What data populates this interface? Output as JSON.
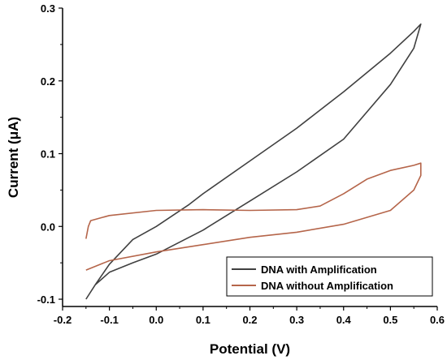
{
  "chart_data": {
    "type": "line",
    "title": "",
    "xlabel": "Potential (V)",
    "ylabel": "Current (μA)",
    "xlim": [
      -0.2,
      0.6
    ],
    "ylim": [
      -0.11,
      0.3
    ],
    "xticks": [
      "-0.2",
      "-0.1",
      "0.0",
      "0.1",
      "0.2",
      "0.3",
      "0.4",
      "0.5",
      "0.6"
    ],
    "yticks": [
      "-0.1",
      "0.0",
      "0.1",
      "0.2",
      "0.3"
    ],
    "grid": false,
    "legend_position": "bottom-right",
    "series": [
      {
        "name": "DNA with Amplification",
        "color": "#404040",
        "x": [
          -0.15,
          -0.13,
          -0.1,
          -0.05,
          0.0,
          0.07,
          0.1,
          0.2,
          0.3,
          0.4,
          0.5,
          0.55,
          0.565,
          0.55,
          0.5,
          0.4,
          0.3,
          0.2,
          0.1,
          0.0,
          -0.05,
          -0.1,
          -0.13,
          -0.15
        ],
        "y": [
          -0.1,
          -0.08,
          -0.052,
          -0.018,
          0.0,
          0.03,
          0.045,
          0.09,
          0.135,
          0.185,
          0.238,
          0.268,
          0.278,
          0.245,
          0.195,
          0.12,
          0.075,
          0.035,
          -0.005,
          -0.038,
          -0.05,
          -0.063,
          -0.08,
          -0.1
        ]
      },
      {
        "name": "DNA without Amplification",
        "color": "#b5654a",
        "x": [
          -0.15,
          -0.145,
          -0.14,
          -0.1,
          0.0,
          0.1,
          0.2,
          0.3,
          0.35,
          0.4,
          0.45,
          0.5,
          0.55,
          0.565,
          0.565,
          0.55,
          0.5,
          0.4,
          0.3,
          0.2,
          0.1,
          0.0,
          -0.1,
          -0.15
        ],
        "y": [
          -0.017,
          0.0,
          0.008,
          0.015,
          0.022,
          0.023,
          0.022,
          0.023,
          0.028,
          0.045,
          0.065,
          0.077,
          0.084,
          0.087,
          0.07,
          0.05,
          0.022,
          0.003,
          -0.008,
          -0.015,
          -0.025,
          -0.035,
          -0.047,
          -0.06
        ]
      }
    ]
  }
}
